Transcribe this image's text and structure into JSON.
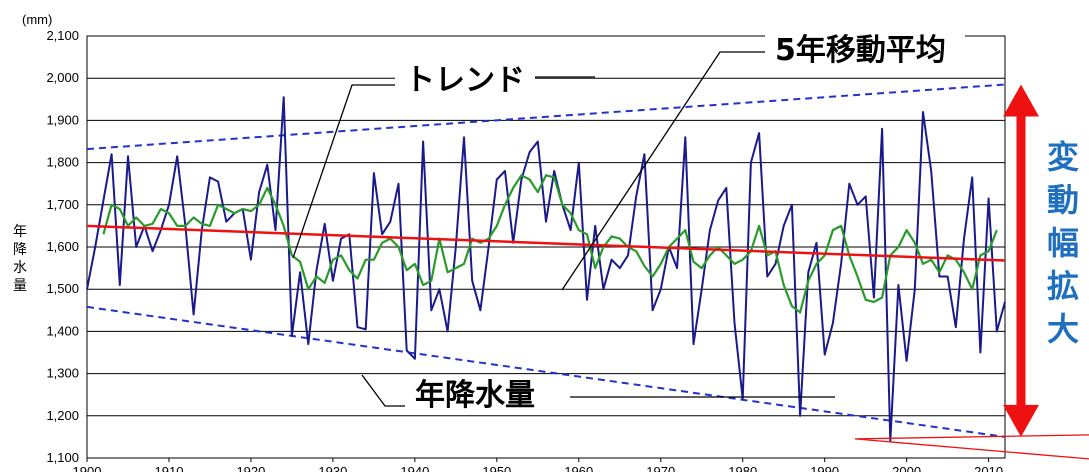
{
  "chart_data": {
    "type": "line",
    "unit_label": "(mm)",
    "ylabel": "年降水量",
    "xlim": [
      1900,
      2012
    ],
    "ylim": [
      1100,
      2100
    ],
    "y_ticks": [
      "1,100",
      "1,200",
      "1,300",
      "1,400",
      "1,500",
      "1,600",
      "1,700",
      "1,800",
      "1,900",
      "2,000",
      "2,100"
    ],
    "x_ticks": [
      "1900",
      "1910",
      "1920",
      "1930",
      "1940",
      "1950",
      "1960",
      "1970",
      "1980",
      "1990",
      "2000",
      "2010"
    ],
    "grid": true,
    "x": [
      1900,
      1901,
      1902,
      1903,
      1904,
      1905,
      1906,
      1907,
      1908,
      1909,
      1910,
      1911,
      1912,
      1913,
      1914,
      1915,
      1916,
      1917,
      1918,
      1919,
      1920,
      1921,
      1922,
      1923,
      1924,
      1925,
      1926,
      1927,
      1928,
      1929,
      1930,
      1931,
      1932,
      1933,
      1934,
      1935,
      1936,
      1937,
      1938,
      1939,
      1940,
      1941,
      1942,
      1943,
      1944,
      1945,
      1946,
      1947,
      1948,
      1949,
      1950,
      1951,
      1952,
      1953,
      1954,
      1955,
      1956,
      1957,
      1958,
      1959,
      1960,
      1961,
      1962,
      1963,
      1964,
      1965,
      1966,
      1967,
      1968,
      1969,
      1970,
      1971,
      1972,
      1973,
      1974,
      1975,
      1976,
      1977,
      1978,
      1979,
      1980,
      1981,
      1982,
      1983,
      1984,
      1985,
      1986,
      1987,
      1988,
      1989,
      1990,
      1991,
      1992,
      1993,
      1994,
      1995,
      1996,
      1997,
      1998,
      1999,
      2000,
      2001,
      2002,
      2003,
      2004,
      2005,
      2006,
      2007,
      2008,
      2009,
      2010,
      2011,
      2012
    ],
    "series": [
      {
        "name": "年降水量",
        "color": "#1a1a8c",
        "values": [
          1500,
          1600,
          1710,
          1820,
          1510,
          1815,
          1600,
          1650,
          1590,
          1640,
          1700,
          1815,
          1650,
          1440,
          1640,
          1765,
          1755,
          1660,
          1680,
          1690,
          1570,
          1730,
          1795,
          1640,
          1955,
          1390,
          1540,
          1370,
          1545,
          1655,
          1520,
          1620,
          1630,
          1410,
          1405,
          1775,
          1630,
          1660,
          1750,
          1355,
          1335,
          1850,
          1450,
          1500,
          1400,
          1600,
          1860,
          1520,
          1450,
          1600,
          1760,
          1780,
          1610,
          1760,
          1825,
          1850,
          1660,
          1780,
          1700,
          1640,
          1800,
          1475,
          1650,
          1500,
          1570,
          1550,
          1580,
          1720,
          1820,
          1450,
          1500,
          1600,
          1550,
          1860,
          1370,
          1500,
          1640,
          1710,
          1740,
          1420,
          1240,
          1800,
          1870,
          1530,
          1560,
          1650,
          1700,
          1200,
          1540,
          1610,
          1345,
          1420,
          1560,
          1750,
          1700,
          1720,
          1480,
          1880,
          1140,
          1510,
          1330,
          1500,
          1920,
          1780,
          1530,
          1530,
          1410,
          1620,
          1765,
          1350,
          1715,
          1400,
          1470
        ]
      },
      {
        "name": "5年移動平均",
        "color": "#2a9a2a",
        "values": [
          null,
          null,
          1630,
          1700,
          1690,
          1650,
          1670,
          1650,
          1655,
          1690,
          1680,
          1650,
          1650,
          1670,
          1655,
          1650,
          1700,
          1690,
          1680,
          1690,
          1685,
          1700,
          1740,
          1700,
          1650,
          1580,
          1565,
          1500,
          1530,
          1515,
          1570,
          1580,
          1545,
          1525,
          1570,
          1570,
          1610,
          1620,
          1600,
          1545,
          1560,
          1510,
          1520,
          1620,
          1540,
          1550,
          1560,
          1620,
          1610,
          1620,
          1650,
          1700,
          1740,
          1770,
          1760,
          1730,
          1770,
          1765,
          1700,
          1680,
          1640,
          1630,
          1550,
          1600,
          1625,
          1620,
          1600,
          1590,
          1555,
          1530,
          1560,
          1600,
          1620,
          1640,
          1565,
          1550,
          1580,
          1600,
          1580,
          1560,
          1570,
          1590,
          1650,
          1580,
          1590,
          1510,
          1460,
          1445,
          1520,
          1560,
          1580,
          1640,
          1650,
          1580,
          1530,
          1475,
          1470,
          1480,
          1580,
          1600,
          1640,
          1610,
          1560,
          1570,
          1540,
          1580,
          1570,
          1540,
          1500,
          1580,
          1590,
          1640,
          null
        ]
      }
    ],
    "trend": {
      "color": "#ee1111",
      "start": [
        1900,
        1650
      ],
      "end": [
        2012,
        1568
      ]
    },
    "envelope": {
      "color": "#2233cc",
      "upper": {
        "start": [
          1900,
          1832
        ],
        "end": [
          2012,
          1985
        ]
      },
      "lower": {
        "start": [
          1900,
          1458
        ],
        "end": [
          2012,
          1150
        ]
      }
    },
    "annotations": {
      "trend_label": "トレンド",
      "moving_avg_label": "5年移動平均",
      "annual_label": "年降水量",
      "side_text": [
        "変",
        "動",
        "幅",
        "拡",
        "大"
      ],
      "arrow_color": "#ee1111"
    }
  }
}
